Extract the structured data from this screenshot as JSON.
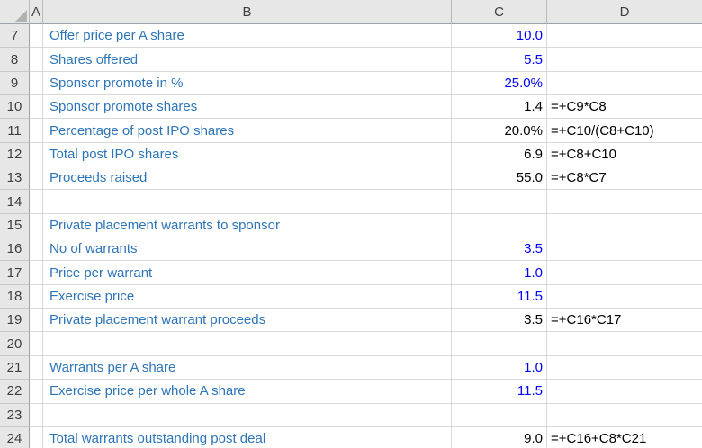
{
  "spreadsheet": {
    "column_headers": {
      "a": "A",
      "b": "B",
      "c": "C",
      "d": "D"
    },
    "colors": {
      "label_blue": "#2E75B6",
      "input_blue": "#0000FF",
      "computed_black": "#000000",
      "header_bg": "#E7E7E7",
      "header_text": "#3F3F3F",
      "gridline": "#D8D8D8"
    },
    "rows": [
      {
        "row": 7,
        "label": "Offer price per A share",
        "value": "10.0",
        "value_type": "input",
        "formula": ""
      },
      {
        "row": 8,
        "label": "Shares offered",
        "value": "5.5",
        "value_type": "input",
        "formula": ""
      },
      {
        "row": 9,
        "label": "Sponsor promote in %",
        "value": "25.0%",
        "value_type": "input",
        "formula": ""
      },
      {
        "row": 10,
        "label": "Sponsor promote shares",
        "value": "1.4",
        "value_type": "computed",
        "formula": "=+C9*C8"
      },
      {
        "row": 11,
        "label": "Percentage of post IPO shares",
        "value": "20.0%",
        "value_type": "computed",
        "formula": "=+C10/(C8+C10)"
      },
      {
        "row": 12,
        "label": "Total post IPO shares",
        "value": "6.9",
        "value_type": "computed",
        "formula": "=+C8+C10"
      },
      {
        "row": 13,
        "label": "Proceeds raised",
        "value": "55.0",
        "value_type": "computed",
        "formula": "=+C8*C7"
      },
      {
        "row": 14,
        "label": "",
        "value": "",
        "value_type": "",
        "formula": ""
      },
      {
        "row": 15,
        "label": "Private placement warrants to sponsor",
        "value": "",
        "value_type": "",
        "formula": ""
      },
      {
        "row": 16,
        "label": "No of warrants",
        "value": "3.5",
        "value_type": "input",
        "formula": ""
      },
      {
        "row": 17,
        "label": "Price per warrant",
        "value": "1.0",
        "value_type": "input",
        "formula": ""
      },
      {
        "row": 18,
        "label": "Exercise price",
        "value": "11.5",
        "value_type": "input",
        "formula": ""
      },
      {
        "row": 19,
        "label": "Private placement warrant proceeds",
        "value": "3.5",
        "value_type": "computed",
        "formula": "=+C16*C17"
      },
      {
        "row": 20,
        "label": "",
        "value": "",
        "value_type": "",
        "formula": ""
      },
      {
        "row": 21,
        "label": "Warrants per A share",
        "value": "1.0",
        "value_type": "input",
        "formula": ""
      },
      {
        "row": 22,
        "label": "Exercise price per whole A share",
        "value": "11.5",
        "value_type": "input",
        "formula": ""
      },
      {
        "row": 23,
        "label": "",
        "value": "",
        "value_type": "",
        "formula": ""
      },
      {
        "row": 24,
        "label": "Total warrants outstanding post deal",
        "value": "9.0",
        "value_type": "computed",
        "formula": "=+C16+C8*C21"
      }
    ]
  }
}
